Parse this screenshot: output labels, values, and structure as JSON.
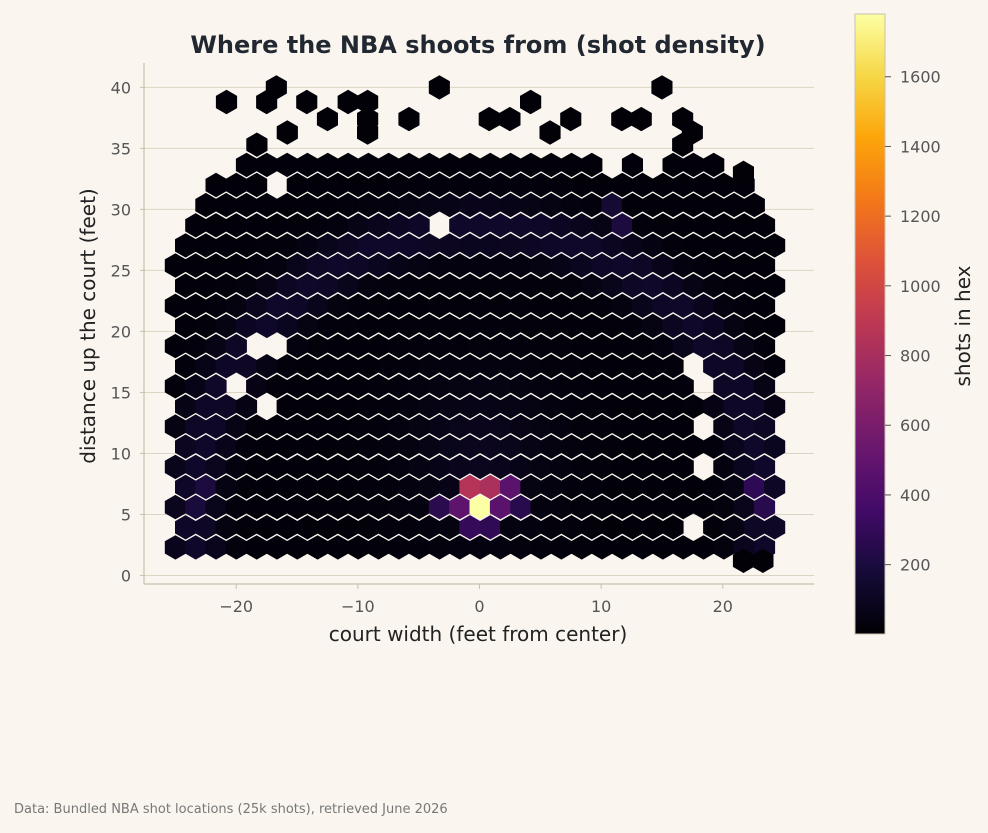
{
  "chart_data": {
    "type": "heatmap",
    "subtype": "hexbin",
    "title": "Where the NBA shoots from (shot density)",
    "xlabel": "court width (feet from center)",
    "ylabel": "distance up the court (feet)",
    "xlim": [
      -27.5,
      27.5
    ],
    "ylim": [
      -0.7,
      42.0
    ],
    "xticks": [
      -20,
      -10,
      0,
      10,
      20
    ],
    "xtick_labels": [
      "−20",
      "−10",
      "0",
      "10",
      "20"
    ],
    "yticks": [
      0,
      5,
      10,
      15,
      20,
      25,
      30,
      35,
      40
    ],
    "ytick_labels": [
      "0",
      "5",
      "10",
      "15",
      "20",
      "25",
      "30",
      "35",
      "40"
    ],
    "grid": "horizontal",
    "colormap": "inferno",
    "colorbar": {
      "label": "shots in hex",
      "range": [
        1,
        1780
      ],
      "ticks": [
        200,
        400,
        600,
        800,
        1000,
        1200,
        1400,
        1600
      ],
      "tick_labels": [
        "200",
        "400",
        "600",
        "800",
        "1000",
        "1200",
        "1400",
        "1600"
      ]
    },
    "hex_grid": {
      "x_spacing": 1.67,
      "y_spacing": 1.65,
      "x_range": [
        -25,
        25
      ],
      "y_range": [
        2.3,
        40
      ],
      "empty_cells": [
        [
          -23.3,
          4.0
        ],
        [
          -18.3,
          10.3
        ],
        [
          -16.7,
          13.8
        ],
        [
          -15.0,
          13.8
        ],
        [
          -21.7,
          11.5
        ],
        [
          -20.0,
          17.2
        ],
        [
          -19.2,
          15.9
        ],
        [
          -15.8,
          15.9
        ],
        [
          -18.3,
          19.4
        ],
        [
          -16.7,
          19.4
        ],
        [
          -12.5,
          25.2
        ],
        [
          -10.8,
          25.2
        ],
        [
          -8.3,
          26.3
        ],
        [
          -3.3,
          28.6
        ],
        [
          6.7,
          26.3
        ],
        [
          -16.7,
          31.7
        ],
        [
          -15.0,
          33.0
        ],
        [
          -13.3,
          33.0
        ],
        [
          -15.8,
          36.5
        ],
        [
          10.8,
          34.2
        ],
        [
          15.0,
          33.0
        ],
        [
          18.3,
          17.2
        ],
        [
          19.2,
          15.9
        ],
        [
          18.3,
          12.7
        ],
        [
          19.2,
          9.3
        ],
        [
          17.5,
          4.6
        ],
        [
          -1.7,
          38.8
        ],
        [
          0.0,
          40.0
        ]
      ],
      "scattered_top_cells": [
        [
          -16.7,
          40.0
        ],
        [
          -3.3,
          40.0
        ],
        [
          15.0,
          40.0
        ],
        [
          -20.8,
          38.8
        ],
        [
          -17.5,
          38.8
        ],
        [
          -14.2,
          38.8
        ],
        [
          -10.8,
          38.8
        ],
        [
          -9.2,
          38.8
        ],
        [
          4.2,
          38.8
        ],
        [
          -12.5,
          37.4
        ],
        [
          -9.2,
          37.4
        ],
        [
          -5.8,
          37.4
        ],
        [
          0.8,
          37.4
        ],
        [
          2.5,
          37.4
        ],
        [
          7.5,
          37.4
        ],
        [
          11.7,
          37.4
        ],
        [
          13.3,
          37.4
        ],
        [
          16.7,
          37.4
        ],
        [
          -15.8,
          36.3
        ],
        [
          -9.2,
          36.3
        ],
        [
          5.8,
          36.3
        ],
        [
          17.5,
          36.3
        ],
        [
          -18.3,
          35.3
        ],
        [
          16.7,
          35.3
        ],
        [
          21.7,
          33.0
        ]
      ],
      "extra_cells": [
        [
          21.7,
          1.2
        ],
        [
          23.3,
          1.2
        ]
      ]
    },
    "hotspots": [
      {
        "x": 0.0,
        "y": 5.8,
        "value": 1780
      },
      {
        "x": -0.8,
        "y": 7.0,
        "value": 860
      },
      {
        "x": 0.8,
        "y": 7.0,
        "value": 820
      },
      {
        "x": -3.3,
        "y": 7.0,
        "value": 500
      },
      {
        "x": -1.7,
        "y": 5.8,
        "value": 480
      },
      {
        "x": 1.7,
        "y": 5.8,
        "value": 470
      },
      {
        "x": 2.5,
        "y": 7.0,
        "value": 470
      },
      {
        "x": -2.5,
        "y": 8.1,
        "value": 380
      },
      {
        "x": 0.0,
        "y": 8.1,
        "value": 350
      },
      {
        "x": 1.7,
        "y": 8.1,
        "value": 320
      },
      {
        "x": -0.8,
        "y": 4.6,
        "value": 300
      },
      {
        "x": 0.8,
        "y": 4.6,
        "value": 290
      },
      {
        "x": -3.3,
        "y": 5.8,
        "value": 260
      },
      {
        "x": 3.3,
        "y": 5.8,
        "value": 250
      },
      {
        "x": 22.5,
        "y": 7.0,
        "value": 280
      },
      {
        "x": 23.3,
        "y": 5.8,
        "value": 250
      },
      {
        "x": -22.5,
        "y": 7.0,
        "value": 200
      },
      {
        "x": -23.3,
        "y": 5.8,
        "value": 190
      },
      {
        "x": 23.3,
        "y": 8.1,
        "value": 180
      },
      {
        "x": -13.3,
        "y": 27.4,
        "value": 210
      },
      {
        "x": 12.5,
        "y": 28.6,
        "value": 200
      },
      {
        "x": 10.8,
        "y": 29.7,
        "value": 160
      },
      {
        "x": -10.8,
        "y": 28.6,
        "value": 170
      }
    ]
  },
  "footer": {
    "source": "Data: Bundled NBA shot locations (25k shots), retrieved June 2026"
  }
}
